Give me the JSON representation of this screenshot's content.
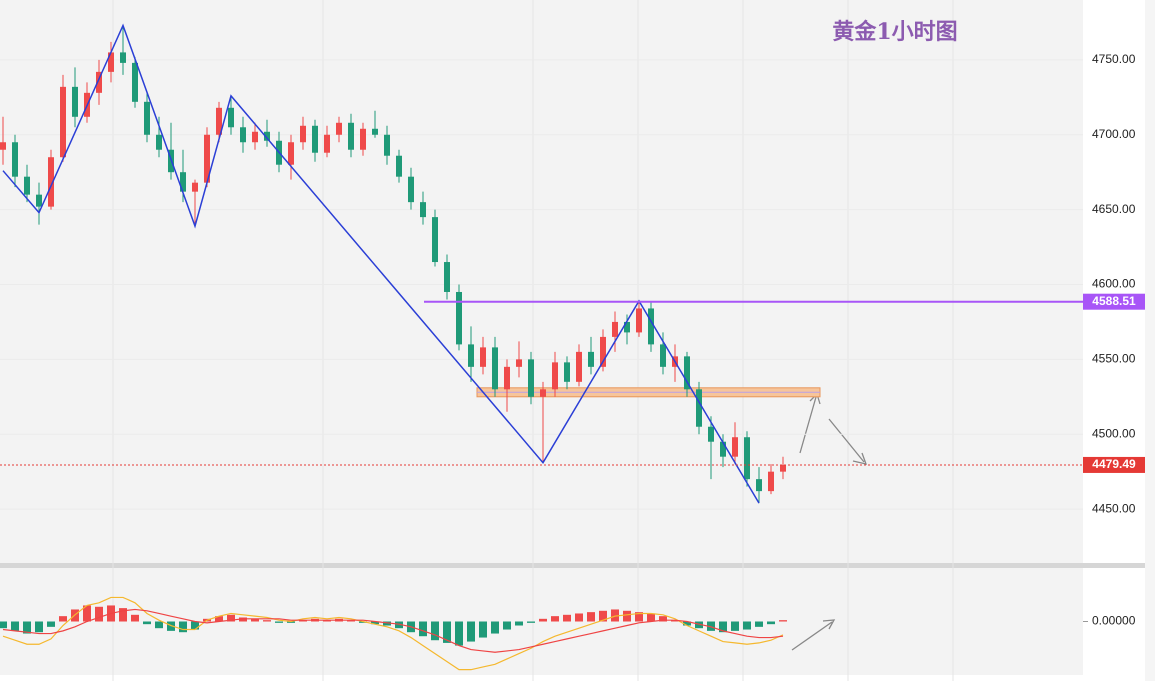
{
  "chart_data": [
    {
      "type": "candlestick",
      "title": "黄金1小时图",
      "up_color": "#ef4a4a",
      "down_color": "#1f9a78",
      "candles": [
        [
          4690,
          4712,
          4680,
          4695
        ],
        [
          4695,
          4700,
          4665,
          4672
        ],
        [
          4672,
          4680,
          4655,
          4660
        ],
        [
          4660,
          4668,
          4640,
          4652
        ],
        [
          4652,
          4690,
          4650,
          4685
        ],
        [
          4685,
          4740,
          4682,
          4732
        ],
        [
          4732,
          4745,
          4705,
          4712
        ],
        [
          4712,
          4735,
          4708,
          4728
        ],
        [
          4728,
          4750,
          4720,
          4742
        ],
        [
          4742,
          4762,
          4735,
          4755
        ],
        [
          4755,
          4773,
          4740,
          4748
        ],
        [
          4748,
          4752,
          4718,
          4722
        ],
        [
          4722,
          4728,
          4695,
          4700
        ],
        [
          4700,
          4712,
          4685,
          4690
        ],
        [
          4690,
          4708,
          4670,
          4675
        ],
        [
          4675,
          4690,
          4655,
          4662
        ],
        [
          4662,
          4670,
          4640,
          4668
        ],
        [
          4668,
          4705,
          4665,
          4700
        ],
        [
          4700,
          4722,
          4695,
          4718
        ],
        [
          4718,
          4726,
          4700,
          4705
        ],
        [
          4705,
          4712,
          4688,
          4695
        ],
        [
          4695,
          4708,
          4690,
          4702
        ],
        [
          4702,
          4710,
          4692,
          4696
        ],
        [
          4696,
          4702,
          4675,
          4680
        ],
        [
          4680,
          4700,
          4670,
          4695
        ],
        [
          4695,
          4712,
          4690,
          4706
        ],
        [
          4706,
          4710,
          4682,
          4688
        ],
        [
          4688,
          4706,
          4685,
          4700
        ],
        [
          4700,
          4712,
          4695,
          4708
        ],
        [
          4708,
          4714,
          4685,
          4690
        ],
        [
          4690,
          4708,
          4686,
          4704
        ],
        [
          4704,
          4716,
          4698,
          4700
        ],
        [
          4700,
          4706,
          4680,
          4686
        ],
        [
          4686,
          4690,
          4668,
          4672
        ],
        [
          4672,
          4678,
          4650,
          4655
        ],
        [
          4655,
          4662,
          4640,
          4645
        ],
        [
          4645,
          4650,
          4612,
          4615
        ],
        [
          4615,
          4620,
          4590,
          4595
        ],
        [
          4595,
          4600,
          4556,
          4560
        ],
        [
          4560,
          4572,
          4535,
          4545
        ],
        [
          4545,
          4565,
          4540,
          4558
        ],
        [
          4558,
          4565,
          4525,
          4530
        ],
        [
          4530,
          4550,
          4515,
          4545
        ],
        [
          4545,
          4562,
          4538,
          4550
        ],
        [
          4550,
          4555,
          4520,
          4525
        ],
        [
          4525,
          4535,
          4481,
          4530
        ],
        [
          4530,
          4555,
          4525,
          4548
        ],
        [
          4548,
          4552,
          4530,
          4535
        ],
        [
          4535,
          4560,
          4532,
          4555
        ],
        [
          4555,
          4565,
          4540,
          4545
        ],
        [
          4545,
          4570,
          4542,
          4565
        ],
        [
          4565,
          4582,
          4555,
          4575
        ],
        [
          4575,
          4580,
          4560,
          4568
        ],
        [
          4568,
          4589,
          4565,
          4584
        ],
        [
          4584,
          4588,
          4555,
          4560
        ],
        [
          4560,
          4568,
          4540,
          4545
        ],
        [
          4545,
          4560,
          4535,
          4552
        ],
        [
          4552,
          4555,
          4525,
          4530
        ],
        [
          4530,
          4535,
          4500,
          4505
        ],
        [
          4505,
          4512,
          4470,
          4495
        ],
        [
          4495,
          4500,
          4478,
          4485
        ],
        [
          4485,
          4508,
          4480,
          4498
        ],
        [
          4498,
          4502,
          4465,
          4470
        ],
        [
          4470,
          4478,
          4454,
          4462
        ],
        [
          4462,
          4480,
          4460,
          4475
        ],
        [
          4475,
          4485,
          4470,
          4479.49
        ]
      ],
      "zigzag": {
        "color": "#2b3fd6",
        "x": [
          0,
          3,
          10,
          16,
          19,
          45,
          53,
          63
        ],
        "values": [
          4676,
          4648,
          4773,
          4639,
          4726,
          4481,
          4589,
          4454
        ]
      },
      "levels": [
        {
          "value": 4588.51,
          "color": "#a855f7",
          "style": "solid"
        },
        {
          "value": 4479.49,
          "color": "#e53935",
          "style": "dotted"
        }
      ],
      "zone": [
        4525,
        4531
      ],
      "ylim": [
        4414,
        4790
      ],
      "yticks": [
        {
          "value": 4450,
          "label": "4450.00"
        },
        {
          "value": 4500,
          "label": "4500.00"
        },
        {
          "value": 4550,
          "label": "4550.00"
        },
        {
          "value": 4600,
          "label": "4600.00"
        },
        {
          "value": 4650,
          "label": "4650.00"
        },
        {
          "value": 4700,
          "label": "4700.00"
        },
        {
          "value": 4750,
          "label": "4750.00"
        }
      ],
      "grid": true
    },
    {
      "type": "macd",
      "up_color": "#ef4a4a",
      "down_color": "#1f9a78",
      "values": [
        -5,
        -7,
        -9,
        -8,
        -4,
        4,
        9,
        12,
        11,
        12,
        10,
        5,
        -2,
        -5,
        -7,
        -8,
        -6,
        2,
        4,
        5,
        3,
        2,
        1,
        -1,
        -1,
        1,
        2,
        1,
        2,
        1,
        -1,
        -2,
        -3,
        -5,
        -8,
        -11,
        -14,
        -16,
        -18,
        -15,
        -12,
        -9,
        -6,
        -3,
        -1,
        2,
        4,
        5,
        6,
        7,
        8,
        9,
        8,
        7,
        6,
        4,
        1,
        -3,
        -5,
        -7,
        -8,
        -7,
        -6,
        -4,
        -2,
        1
      ],
      "series": [
        {
          "color": "#f5b82e",
          "values": [
            -11,
            -14,
            -17,
            -17,
            -13,
            -3,
            5,
            12,
            14,
            18,
            18,
            14,
            6,
            1,
            -3,
            -6,
            -6,
            1,
            4,
            6,
            5,
            4,
            3,
            1,
            0,
            2,
            3,
            2,
            3,
            2,
            0,
            -2,
            -4,
            -7,
            -12,
            -18,
            -24,
            -30,
            -36,
            -36,
            -34,
            -32,
            -28,
            -24,
            -20,
            -15,
            -11,
            -8,
            -5,
            -2,
            1,
            4,
            5,
            6,
            6,
            5,
            2,
            -3,
            -7,
            -11,
            -15,
            -16,
            -17,
            -16,
            -14,
            -10
          ]
        },
        {
          "color": "#ef4444",
          "values": [
            -6,
            -7,
            -8,
            -9,
            -9,
            -7,
            -4,
            0,
            3,
            6,
            8,
            9,
            8,
            6,
            4,
            2,
            0,
            -1,
            0,
            1,
            2,
            2,
            2,
            2,
            1,
            1,
            1,
            1,
            1,
            1,
            1,
            0,
            -1,
            -2,
            -4,
            -7,
            -10,
            -14,
            -18,
            -21,
            -22,
            -23,
            -22,
            -21,
            -19,
            -17,
            -15,
            -13,
            -11,
            -9,
            -7,
            -5,
            -3,
            -1,
            0,
            1,
            1,
            0,
            -2,
            -4,
            -7,
            -9,
            -11,
            -12,
            -12,
            -11
          ]
        }
      ],
      "ylim": [
        -40,
        40
      ],
      "yticks": [
        {
          "value": 0,
          "label": "0.00000"
        }
      ]
    }
  ]
}
